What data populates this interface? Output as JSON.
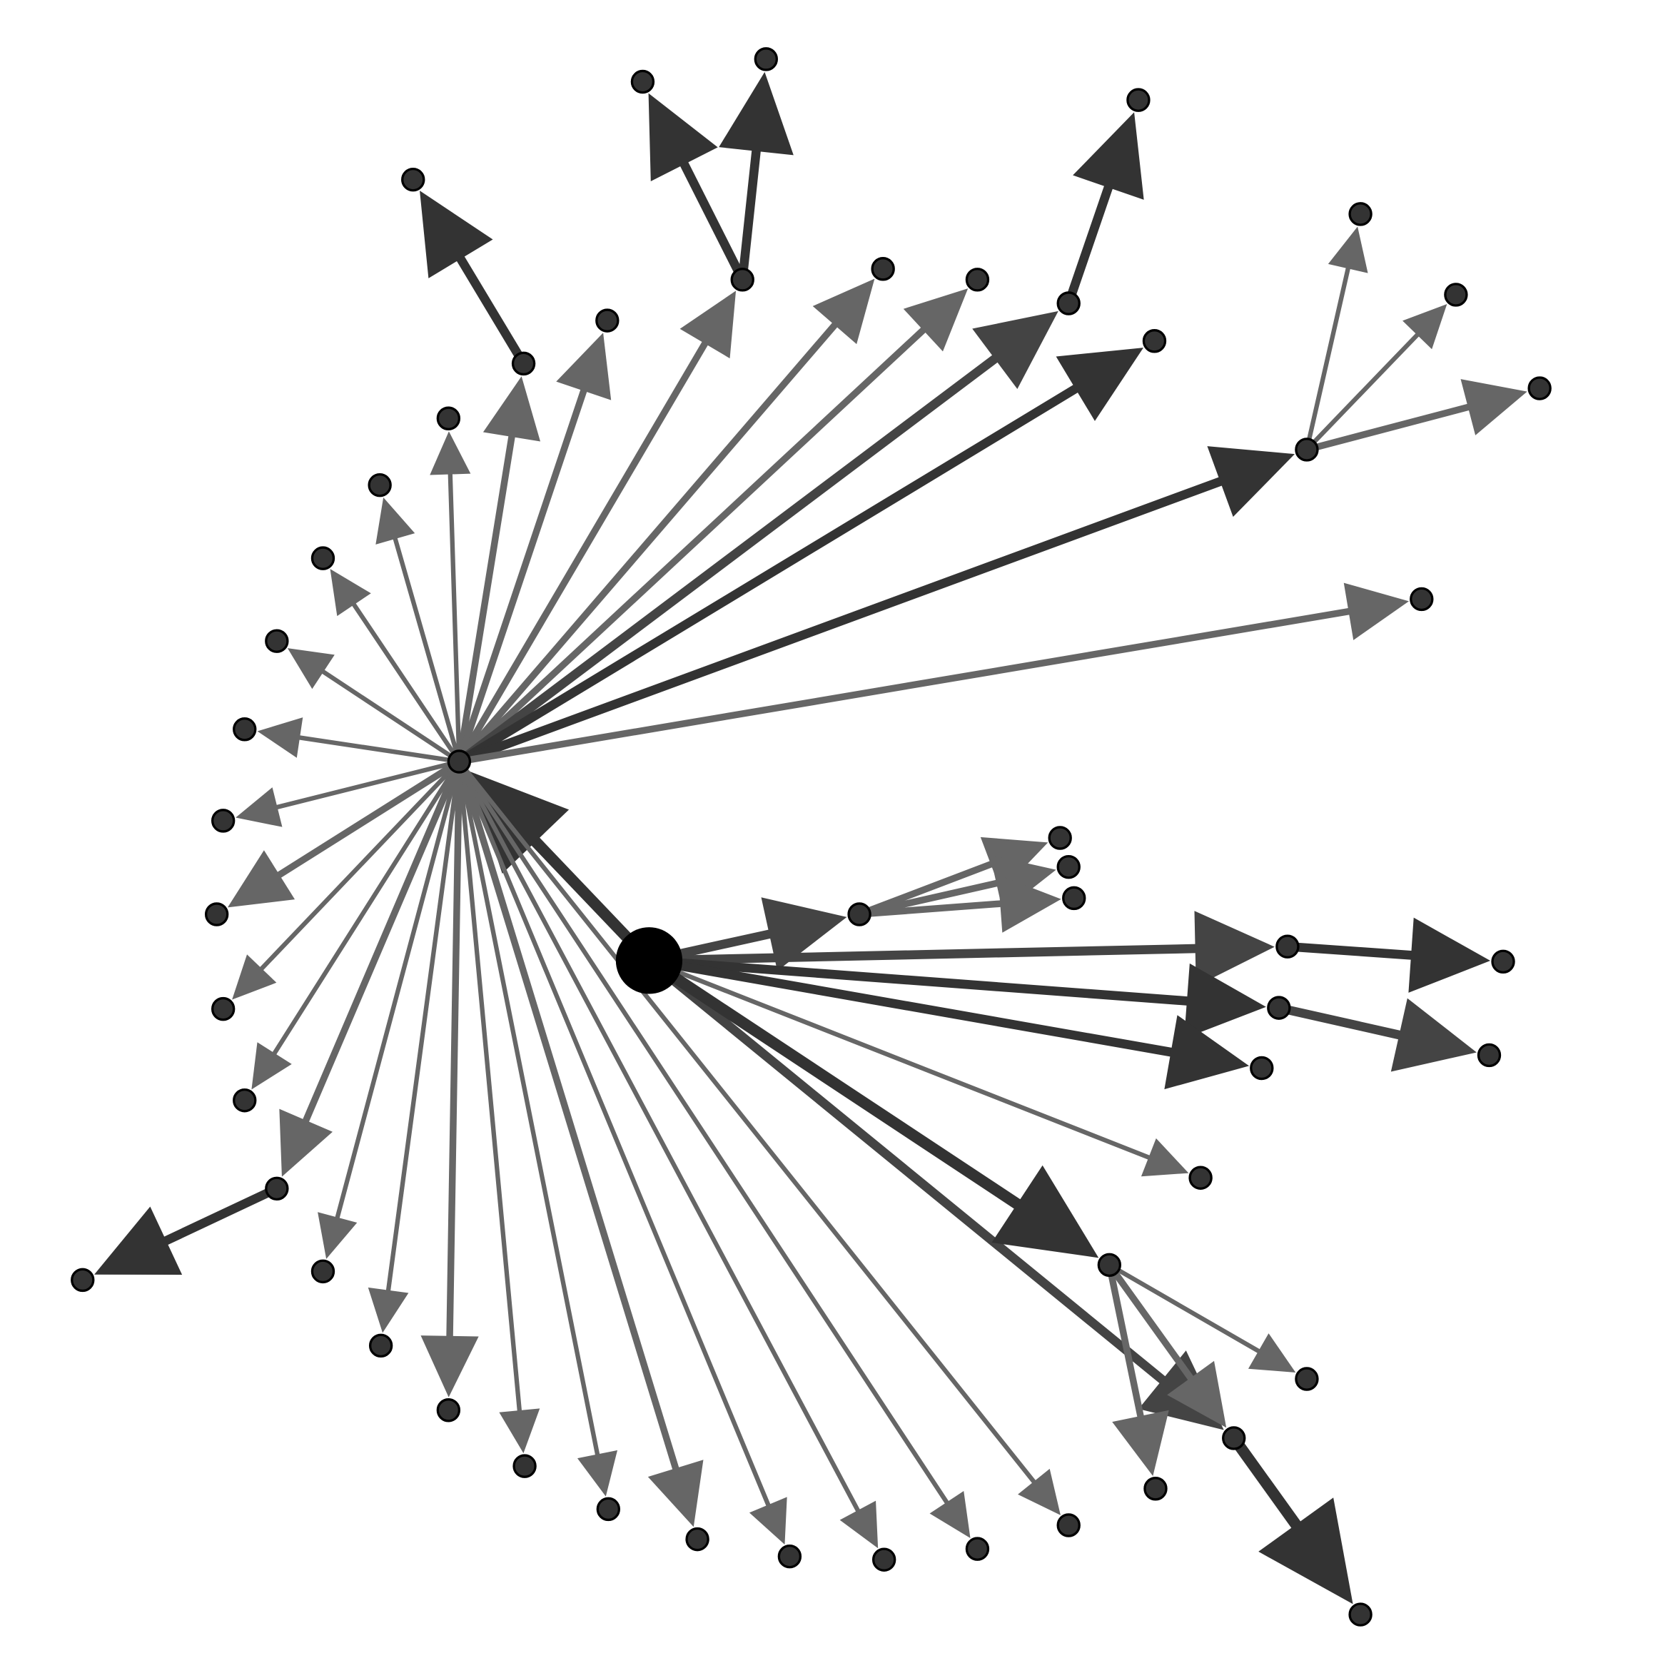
{
  "diagram": {
    "type": "directed-graph",
    "background": "#ffffff",
    "node_fill": "#333333",
    "root_fill": "#000000",
    "node_stroke": "#000000",
    "edge_colors": {
      "dark": "#333333",
      "mid": "#444444",
      "light": "#666666"
    },
    "nodes": [
      {
        "id": "root"
      },
      {
        "id": "hub"
      },
      {
        "id": "n_689"
      },
      {
        "id": "n_1034"
      },
      {
        "id": "n_1218"
      },
      {
        "id": "n_801"
      },
      {
        "id": "n_1200"
      },
      {
        "id": "n_1192"
      },
      {
        "id": "n_1150"
      },
      {
        "id": "n_258"
      },
      {
        "id": "n_488"
      },
      {
        "id": "n_996"
      },
      {
        "id": "n_385"
      },
      {
        "id": "n_599"
      },
      {
        "id": "n_714"
      },
      {
        "id": "n_1061"
      },
      {
        "id": "n_1076"
      },
      {
        "id": "n_823"
      },
      {
        "id": "n_911"
      },
      {
        "id": "n_566"
      },
      {
        "id": "n_418"
      },
      {
        "id": "n_354"
      },
      {
        "id": "n_301"
      },
      {
        "id": "n_258b"
      },
      {
        "id": "n_228"
      },
      {
        "id": "n_208"
      },
      {
        "id": "n_202"
      },
      {
        "id": "n_208b"
      },
      {
        "id": "n_228b"
      },
      {
        "id": "n_301b"
      },
      {
        "id": "n_355"
      },
      {
        "id": "n_418b"
      },
      {
        "id": "n_489"
      },
      {
        "id": "n_567"
      },
      {
        "id": "n_650"
      },
      {
        "id": "n_736"
      },
      {
        "id": "n_824"
      },
      {
        "id": "n_911b"
      },
      {
        "id": "n_996b"
      },
      {
        "id": "n_1325"
      },
      {
        "id": "n_1268"
      },
      {
        "id": "n_1357"
      },
      {
        "id": "n_1435"
      },
      {
        "id": "n_988"
      },
      {
        "id": "n_996c"
      },
      {
        "id": "n_1001"
      },
      {
        "id": "n_1401"
      },
      {
        "id": "n_1388"
      },
      {
        "id": "n_1176"
      },
      {
        "id": "n_1119"
      },
      {
        "id": "n_77"
      },
      {
        "id": "n_1218b"
      },
      {
        "id": "n_1077"
      },
      {
        "id": "n_1268b"
      }
    ],
    "edges": [
      {
        "from": "root",
        "to": "hub",
        "tone": "dark",
        "weight": 5
      },
      {
        "from": "root",
        "to": "n_801",
        "tone": "mid",
        "weight": 4
      },
      {
        "from": "root",
        "to": "n_1200",
        "tone": "mid",
        "weight": 4
      },
      {
        "from": "root",
        "to": "n_1192",
        "tone": "dark",
        "weight": 4
      },
      {
        "from": "root",
        "to": "n_1176",
        "tone": "dark",
        "weight": 4
      },
      {
        "from": "root",
        "to": "n_1150",
        "tone": "mid",
        "weight": 4
      },
      {
        "from": "root",
        "to": "n_1119",
        "tone": "light",
        "weight": 2
      },
      {
        "from": "root",
        "to": "n_1034",
        "tone": "dark",
        "weight": 5
      },
      {
        "from": "hub",
        "to": "n_488",
        "tone": "light",
        "weight": 3
      },
      {
        "from": "hub",
        "to": "n_566",
        "tone": "light",
        "weight": 3
      },
      {
        "from": "hub",
        "to": "n_689",
        "tone": "light",
        "weight": 3
      },
      {
        "from": "hub",
        "to": "n_823",
        "tone": "light",
        "weight": 3
      },
      {
        "from": "hub",
        "to": "n_911",
        "tone": "light",
        "weight": 3
      },
      {
        "from": "hub",
        "to": "n_996",
        "tone": "mid",
        "weight": 4
      },
      {
        "from": "hub",
        "to": "n_1076",
        "tone": "dark",
        "weight": 4
      },
      {
        "from": "hub",
        "to": "n_1218",
        "tone": "dark",
        "weight": 4
      },
      {
        "from": "hub",
        "to": "n_1325",
        "tone": "light",
        "weight": 3
      },
      {
        "from": "hub",
        "to": "n_418",
        "tone": "light",
        "weight": 2
      },
      {
        "from": "hub",
        "to": "n_354",
        "tone": "light",
        "weight": 2
      },
      {
        "from": "hub",
        "to": "n_301",
        "tone": "light",
        "weight": 2
      },
      {
        "from": "hub",
        "to": "n_258b",
        "tone": "light",
        "weight": 2
      },
      {
        "from": "hub",
        "to": "n_228",
        "tone": "light",
        "weight": 2
      },
      {
        "from": "hub",
        "to": "n_208",
        "tone": "light",
        "weight": 2
      },
      {
        "from": "hub",
        "to": "n_202",
        "tone": "light",
        "weight": 3
      },
      {
        "from": "hub",
        "to": "n_208b",
        "tone": "light",
        "weight": 2
      },
      {
        "from": "hub",
        "to": "n_228b",
        "tone": "light",
        "weight": 2
      },
      {
        "from": "hub",
        "to": "n_258",
        "tone": "light",
        "weight": 3
      },
      {
        "from": "hub",
        "to": "n_301b",
        "tone": "light",
        "weight": 2
      },
      {
        "from": "hub",
        "to": "n_355",
        "tone": "light",
        "weight": 2
      },
      {
        "from": "hub",
        "to": "n_418b",
        "tone": "light",
        "weight": 3
      },
      {
        "from": "hub",
        "to": "n_489",
        "tone": "light",
        "weight": 2
      },
      {
        "from": "hub",
        "to": "n_567",
        "tone": "light",
        "weight": 2
      },
      {
        "from": "hub",
        "to": "n_650",
        "tone": "light",
        "weight": 3
      },
      {
        "from": "hub",
        "to": "n_736",
        "tone": "light",
        "weight": 2
      },
      {
        "from": "hub",
        "to": "n_824",
        "tone": "light",
        "weight": 2
      },
      {
        "from": "hub",
        "to": "n_911b",
        "tone": "light",
        "weight": 2
      },
      {
        "from": "hub",
        "to": "n_996b",
        "tone": "light",
        "weight": 2
      },
      {
        "from": "n_488",
        "to": "n_385",
        "tone": "dark",
        "weight": 4
      },
      {
        "from": "n_689",
        "to": "n_599",
        "tone": "dark",
        "weight": 4
      },
      {
        "from": "n_689",
        "to": "n_714",
        "tone": "dark",
        "weight": 4
      },
      {
        "from": "n_996",
        "to": "n_1061",
        "tone": "dark",
        "weight": 4
      },
      {
        "from": "n_258",
        "to": "n_77",
        "tone": "dark",
        "weight": 4
      },
      {
        "from": "n_1218",
        "to": "n_1268",
        "tone": "light",
        "weight": 2
      },
      {
        "from": "n_1218",
        "to": "n_1357",
        "tone": "light",
        "weight": 2
      },
      {
        "from": "n_1218",
        "to": "n_1435",
        "tone": "light",
        "weight": 3
      },
      {
        "from": "n_801",
        "to": "n_988",
        "tone": "light",
        "weight": 3
      },
      {
        "from": "n_801",
        "to": "n_996c",
        "tone": "light",
        "weight": 3
      },
      {
        "from": "n_801",
        "to": "n_1001",
        "tone": "light",
        "weight": 3
      },
      {
        "from": "n_1200",
        "to": "n_1401",
        "tone": "dark",
        "weight": 4
      },
      {
        "from": "n_1192",
        "to": "n_1388",
        "tone": "mid",
        "weight": 4
      },
      {
        "from": "n_1034",
        "to": "n_1218b",
        "tone": "light",
        "weight": 2
      },
      {
        "from": "n_1034",
        "to": "n_1077",
        "tone": "light",
        "weight": 3
      },
      {
        "from": "n_1034",
        "to": "n_1150",
        "tone": "light",
        "weight": 3
      },
      {
        "from": "n_1150",
        "to": "n_1268b",
        "tone": "dark",
        "weight": 5
      }
    ]
  }
}
